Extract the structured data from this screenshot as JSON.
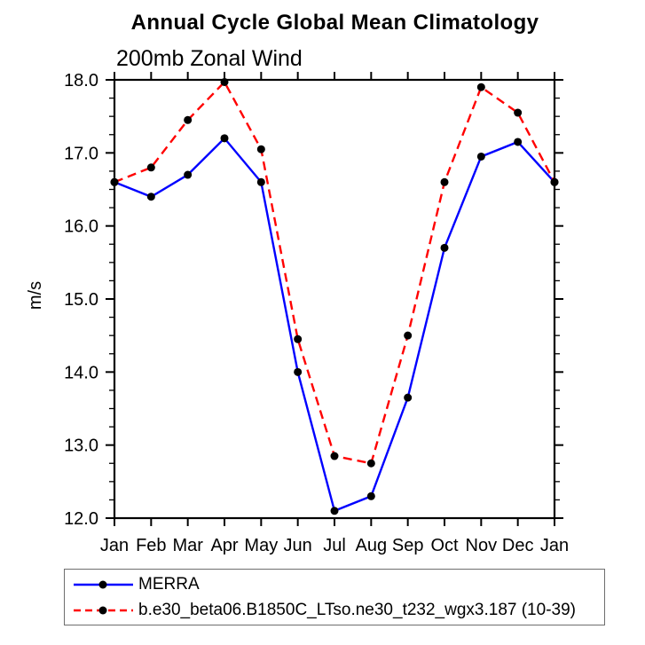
{
  "chart_data": {
    "type": "line",
    "title": "Annual Cycle Global Mean Climatology",
    "subtitle": "200mb Zonal Wind",
    "ylabel": "m/s",
    "xlabel": "",
    "categories": [
      "Jan",
      "Feb",
      "Mar",
      "Apr",
      "May",
      "Jun",
      "Jul",
      "Aug",
      "Sep",
      "Oct",
      "Nov",
      "Dec",
      "Jan"
    ],
    "ylim": [
      12.0,
      18.0
    ],
    "ytick_major_interval": 1.0,
    "ytick_minor_interval": 0.25,
    "ytick_labels": [
      "12.0",
      "13.0",
      "14.0",
      "15.0",
      "16.0",
      "17.0",
      "18.0"
    ],
    "grid": false,
    "legend_position": "bottom-left-box",
    "marker": {
      "shape": "circle",
      "color": "#000000",
      "radius": 4.5
    },
    "frame_color": "#000000",
    "series": [
      {
        "name": "MERRA",
        "color": "#0000ff",
        "line_style": "solid",
        "values": [
          16.6,
          16.4,
          16.7,
          17.2,
          16.6,
          14.0,
          12.1,
          12.3,
          13.65,
          15.7,
          16.95,
          17.15,
          16.6
        ]
      },
      {
        "name": "b.e30_beta06.B1850C_LTso.ne30_t232_wgx3.187 (10-39)",
        "color": "#ff0000",
        "line_style": "dashed",
        "values": [
          16.6,
          16.8,
          17.45,
          17.97,
          17.05,
          14.45,
          12.85,
          12.75,
          14.5,
          16.6,
          17.9,
          17.55,
          16.6
        ]
      }
    ]
  }
}
